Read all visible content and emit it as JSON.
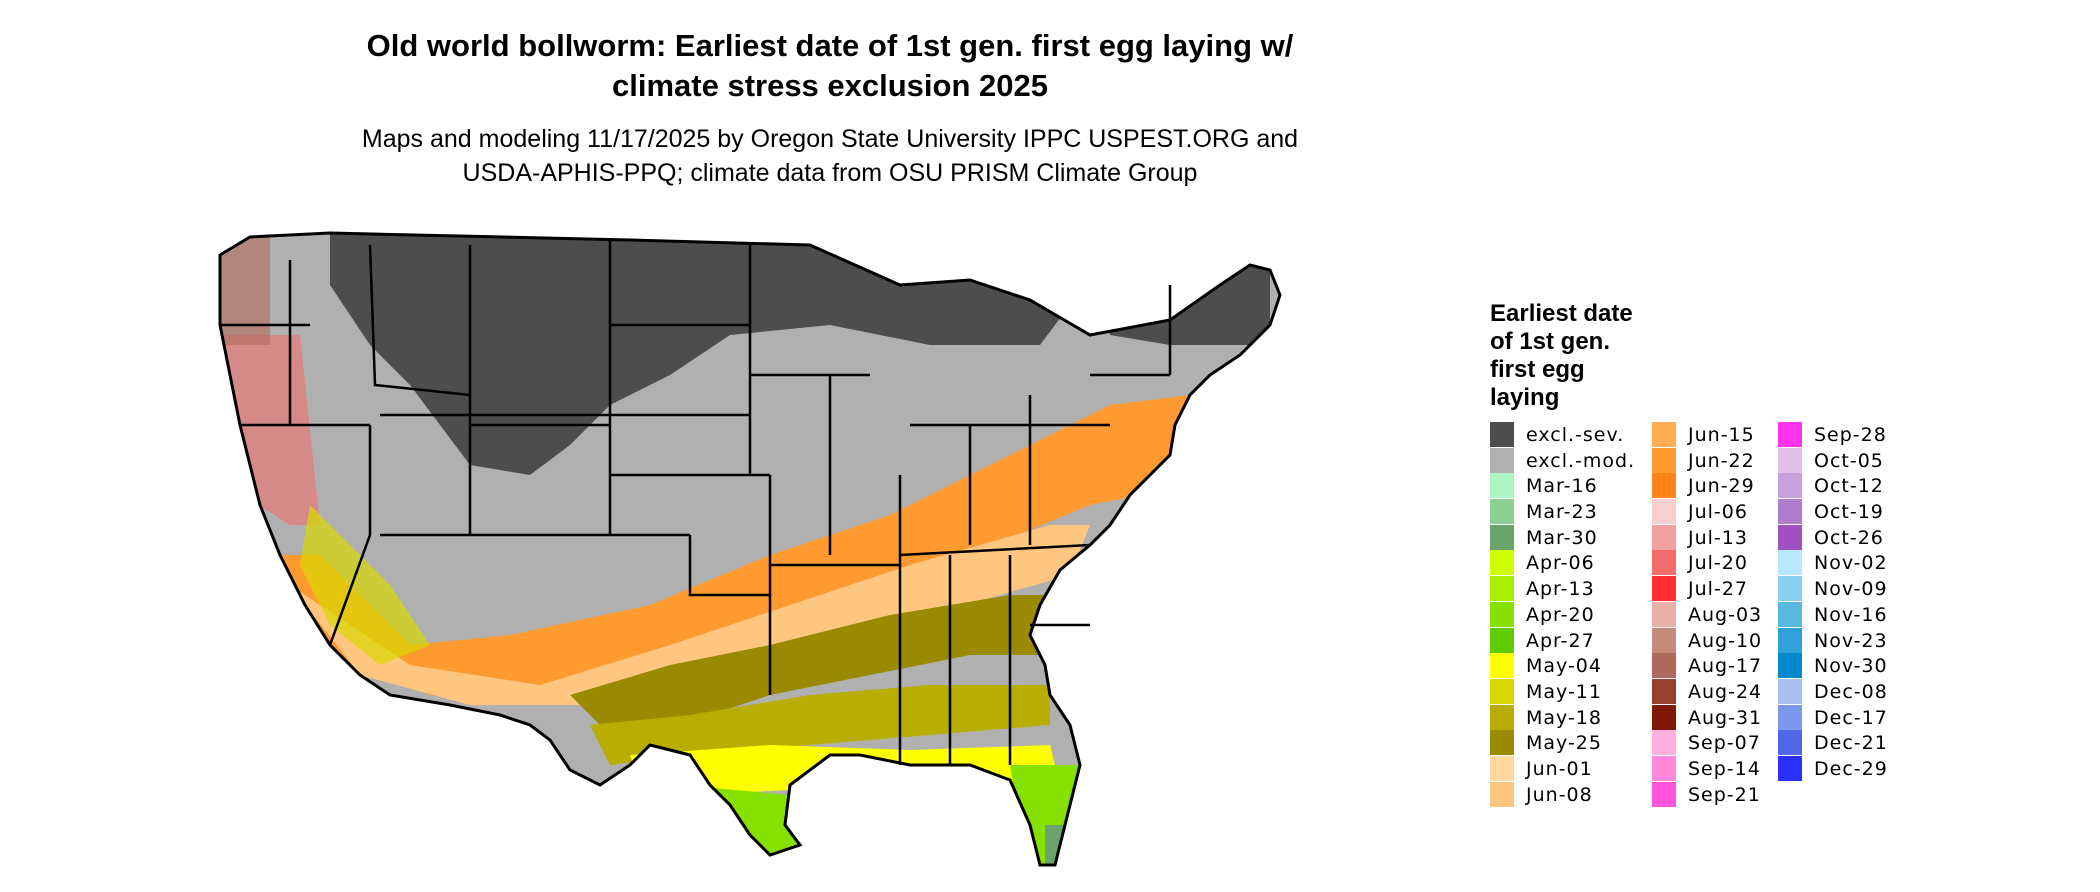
{
  "title": {
    "line1": "Old world bollworm: Earliest date of 1st gen. first egg laying w/",
    "line2": "climate stress exclusion 2025"
  },
  "subtitle": {
    "line1": "Maps and modeling 11/17/2025 by Oregon State University IPPC USPEST.ORG and",
    "line2": "USDA-APHIS-PPQ; climate data from OSU PRISM Climate Group"
  },
  "legend": {
    "title_lines": [
      "Earliest date",
      "of 1st gen.",
      "first egg",
      "laying"
    ],
    "columns": [
      [
        {
          "label": "excl.-sev.",
          "color": "#4d4d4d"
        },
        {
          "label": "excl.-mod.",
          "color": "#b0b0b0"
        },
        {
          "label": "Mar-16",
          "color": "#aef5c4"
        },
        {
          "label": "Mar-23",
          "color": "#8ccf90"
        },
        {
          "label": "Mar-30",
          "color": "#6aa46a"
        },
        {
          "label": "Apr-06",
          "color": "#ccff00"
        },
        {
          "label": "Apr-13",
          "color": "#a8ef00"
        },
        {
          "label": "Apr-20",
          "color": "#86e000"
        },
        {
          "label": "Apr-27",
          "color": "#5fcc00"
        },
        {
          "label": "May-04",
          "color": "#ffff00"
        },
        {
          "label": "May-11",
          "color": "#d8d800"
        },
        {
          "label": "May-18",
          "color": "#b8ad00"
        },
        {
          "label": "May-25",
          "color": "#9a8a00"
        },
        {
          "label": "Jun-01",
          "color": "#ffd9a0"
        },
        {
          "label": "Jun-08",
          "color": "#ffc680"
        }
      ],
      [
        {
          "label": "Jun-15",
          "color": "#ffae55"
        },
        {
          "label": "Jun-22",
          "color": "#ff9a30"
        },
        {
          "label": "Jun-29",
          "color": "#ff8418"
        },
        {
          "label": "Jul-06",
          "color": "#f8d0d0"
        },
        {
          "label": "Jul-13",
          "color": "#f5a0a0"
        },
        {
          "label": "Jul-20",
          "color": "#f56a6a"
        },
        {
          "label": "Jul-27",
          "color": "#ff3030"
        },
        {
          "label": "Aug-03",
          "color": "#e8b0a8"
        },
        {
          "label": "Aug-10",
          "color": "#c8887c"
        },
        {
          "label": "Aug-17",
          "color": "#b06a5c"
        },
        {
          "label": "Aug-24",
          "color": "#9a4030"
        },
        {
          "label": "Aug-31",
          "color": "#801808"
        },
        {
          "label": "Sep-07",
          "color": "#ffb0e0"
        },
        {
          "label": "Sep-14",
          "color": "#ff88dd"
        },
        {
          "label": "Sep-21",
          "color": "#ff55dd"
        }
      ],
      [
        {
          "label": "Sep-28",
          "color": "#ff33ee"
        },
        {
          "label": "Oct-05",
          "color": "#e0c0e8"
        },
        {
          "label": "Oct-12",
          "color": "#c8a0dc"
        },
        {
          "label": "Oct-19",
          "color": "#b07ccc"
        },
        {
          "label": "Oct-26",
          "color": "#a050c0"
        },
        {
          "label": "Nov-02",
          "color": "#b8e8ff"
        },
        {
          "label": "Nov-09",
          "color": "#88d0f0"
        },
        {
          "label": "Nov-16",
          "color": "#58b8e0"
        },
        {
          "label": "Nov-23",
          "color": "#30a0d8"
        },
        {
          "label": "Nov-30",
          "color": "#0088cc"
        },
        {
          "label": "Dec-08",
          "color": "#a8c0f0"
        },
        {
          "label": "Dec-17",
          "color": "#7c98ec"
        },
        {
          "label": "Dec-21",
          "color": "#5068e8"
        },
        {
          "label": "Dec-29",
          "color": "#2a30f8"
        }
      ]
    ]
  }
}
